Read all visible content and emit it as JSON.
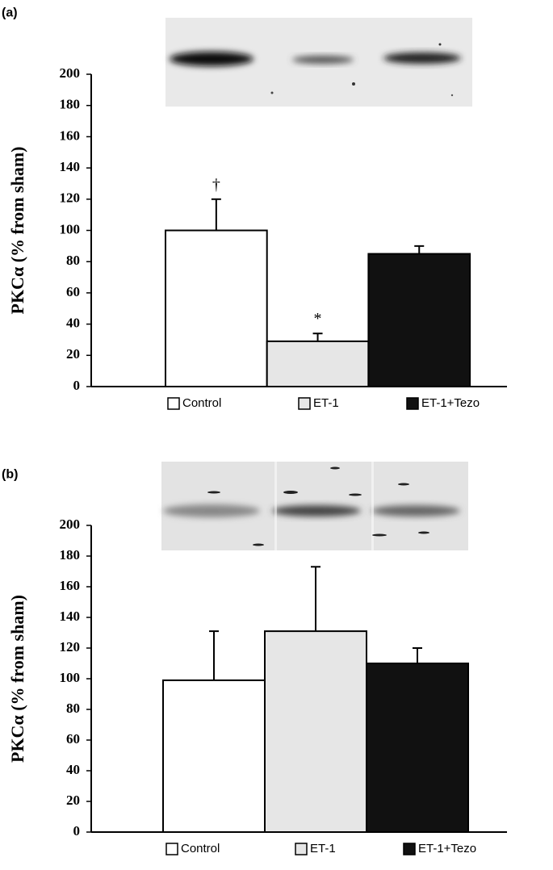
{
  "chart_data": [
    {
      "type": "bar",
      "panel_label": "(a)",
      "y_label": "PKCα (% from sham)",
      "categories": [
        "Control",
        "ET-1",
        "ET-1+Tezo"
      ],
      "values": [
        100,
        29,
        85
      ],
      "errors": [
        20,
        5,
        5
      ],
      "colors": [
        "#ffffff",
        "#e6e6e6",
        "#111111"
      ],
      "annotations": [
        "†",
        "*",
        null
      ],
      "ylim": [
        0,
        200
      ],
      "yticks": [
        0,
        20,
        40,
        60,
        80,
        100,
        120,
        140,
        160,
        180,
        200
      ]
    },
    {
      "type": "bar",
      "panel_label": "(b)",
      "y_label": "PKCα (% from sham)",
      "categories": [
        "Control",
        "ET-1",
        "ET-1+Tezo"
      ],
      "values": [
        99,
        131,
        110
      ],
      "errors": [
        32,
        42,
        10
      ],
      "colors": [
        "#ffffff",
        "#e6e6e6",
        "#111111"
      ],
      "annotations": [
        null,
        null,
        null
      ],
      "ylim": [
        0,
        200
      ],
      "yticks": [
        0,
        20,
        40,
        60,
        80,
        100,
        120,
        140,
        160,
        180,
        200
      ]
    }
  ]
}
